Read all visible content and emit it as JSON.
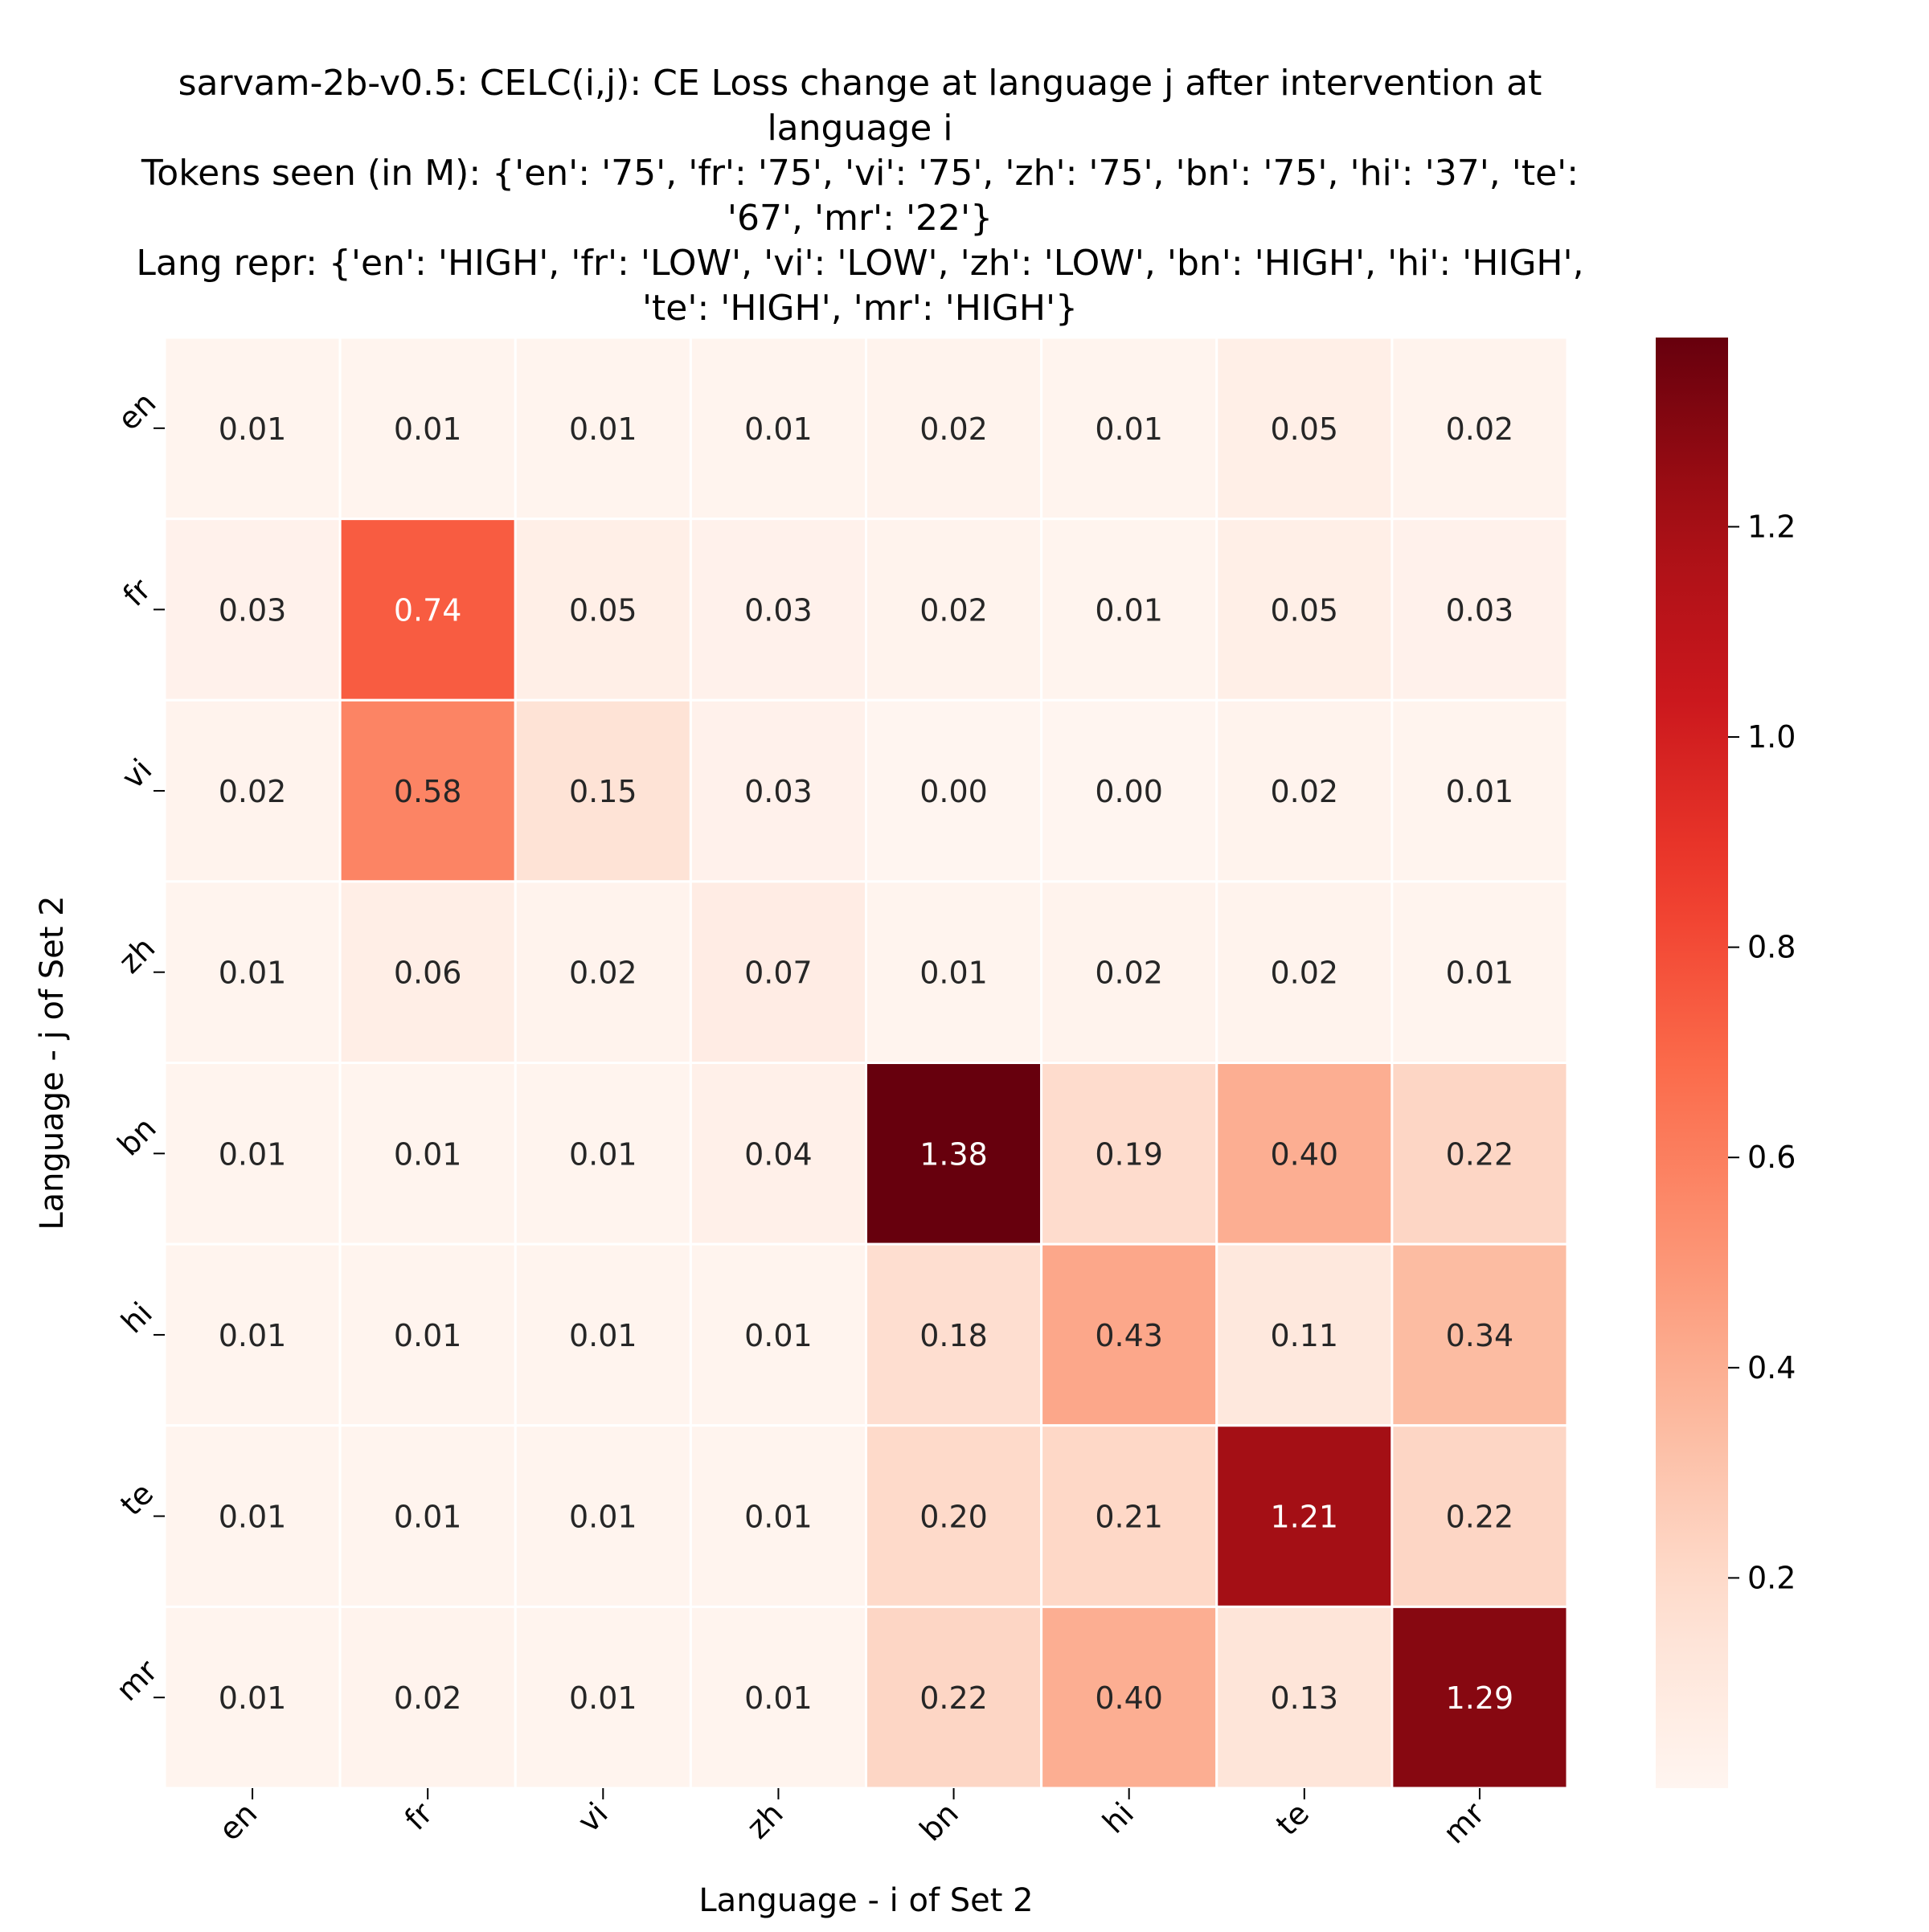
{
  "chart_data": {
    "type": "heatmap",
    "title_lines": [
      "sarvam-2b-v0.5: CELC(i,j): CE Loss change at language j after intervention at",
      "language i",
      "Tokens seen (in M): {'en': '75', 'fr': '75', 'vi': '75', 'zh': '75', 'bn': '75', 'hi': '37', 'te':",
      "'67', 'mr': '22'}",
      "Lang repr: {'en': 'HIGH', 'fr': 'LOW', 'vi': 'LOW', 'zh': 'LOW', 'bn': 'HIGH', 'hi': 'HIGH',",
      "'te': 'HIGH', 'mr': 'HIGH'}"
    ],
    "xlabel": "Language - i of Set 2",
    "ylabel": "Language - j of Set 2",
    "x_categories": [
      "en",
      "fr",
      "vi",
      "zh",
      "bn",
      "hi",
      "te",
      "mr"
    ],
    "y_categories": [
      "en",
      "fr",
      "vi",
      "zh",
      "bn",
      "hi",
      "te",
      "mr"
    ],
    "values": [
      [
        0.01,
        0.01,
        0.01,
        0.01,
        0.02,
        0.01,
        0.05,
        0.02
      ],
      [
        0.03,
        0.74,
        0.05,
        0.03,
        0.02,
        0.01,
        0.05,
        0.03
      ],
      [
        0.02,
        0.58,
        0.15,
        0.03,
        0.0,
        0.0,
        0.02,
        0.01
      ],
      [
        0.01,
        0.06,
        0.02,
        0.07,
        0.01,
        0.02,
        0.02,
        0.01
      ],
      [
        0.01,
        0.01,
        0.01,
        0.04,
        1.38,
        0.19,
        0.4,
        0.22
      ],
      [
        0.01,
        0.01,
        0.01,
        0.01,
        0.18,
        0.43,
        0.11,
        0.34
      ],
      [
        0.01,
        0.01,
        0.01,
        0.01,
        0.2,
        0.21,
        1.21,
        0.22
      ],
      [
        0.01,
        0.02,
        0.01,
        0.01,
        0.22,
        0.4,
        0.13,
        1.29
      ]
    ],
    "value_format_decimals": 2,
    "colormap": "Reds",
    "color_range": [
      0.0,
      1.38
    ],
    "colorbar_ticks": [
      0.2,
      0.4,
      0.6,
      0.8,
      1.0,
      1.2
    ],
    "colorbar_tick_labels": [
      "0.2",
      "0.4",
      "0.6",
      "0.8",
      "1.0",
      "1.2"
    ],
    "colorbar_position": "right",
    "cell_border_color": "#ffffff",
    "text_color_dark": "#262626",
    "text_color_light": "#ffffff"
  }
}
